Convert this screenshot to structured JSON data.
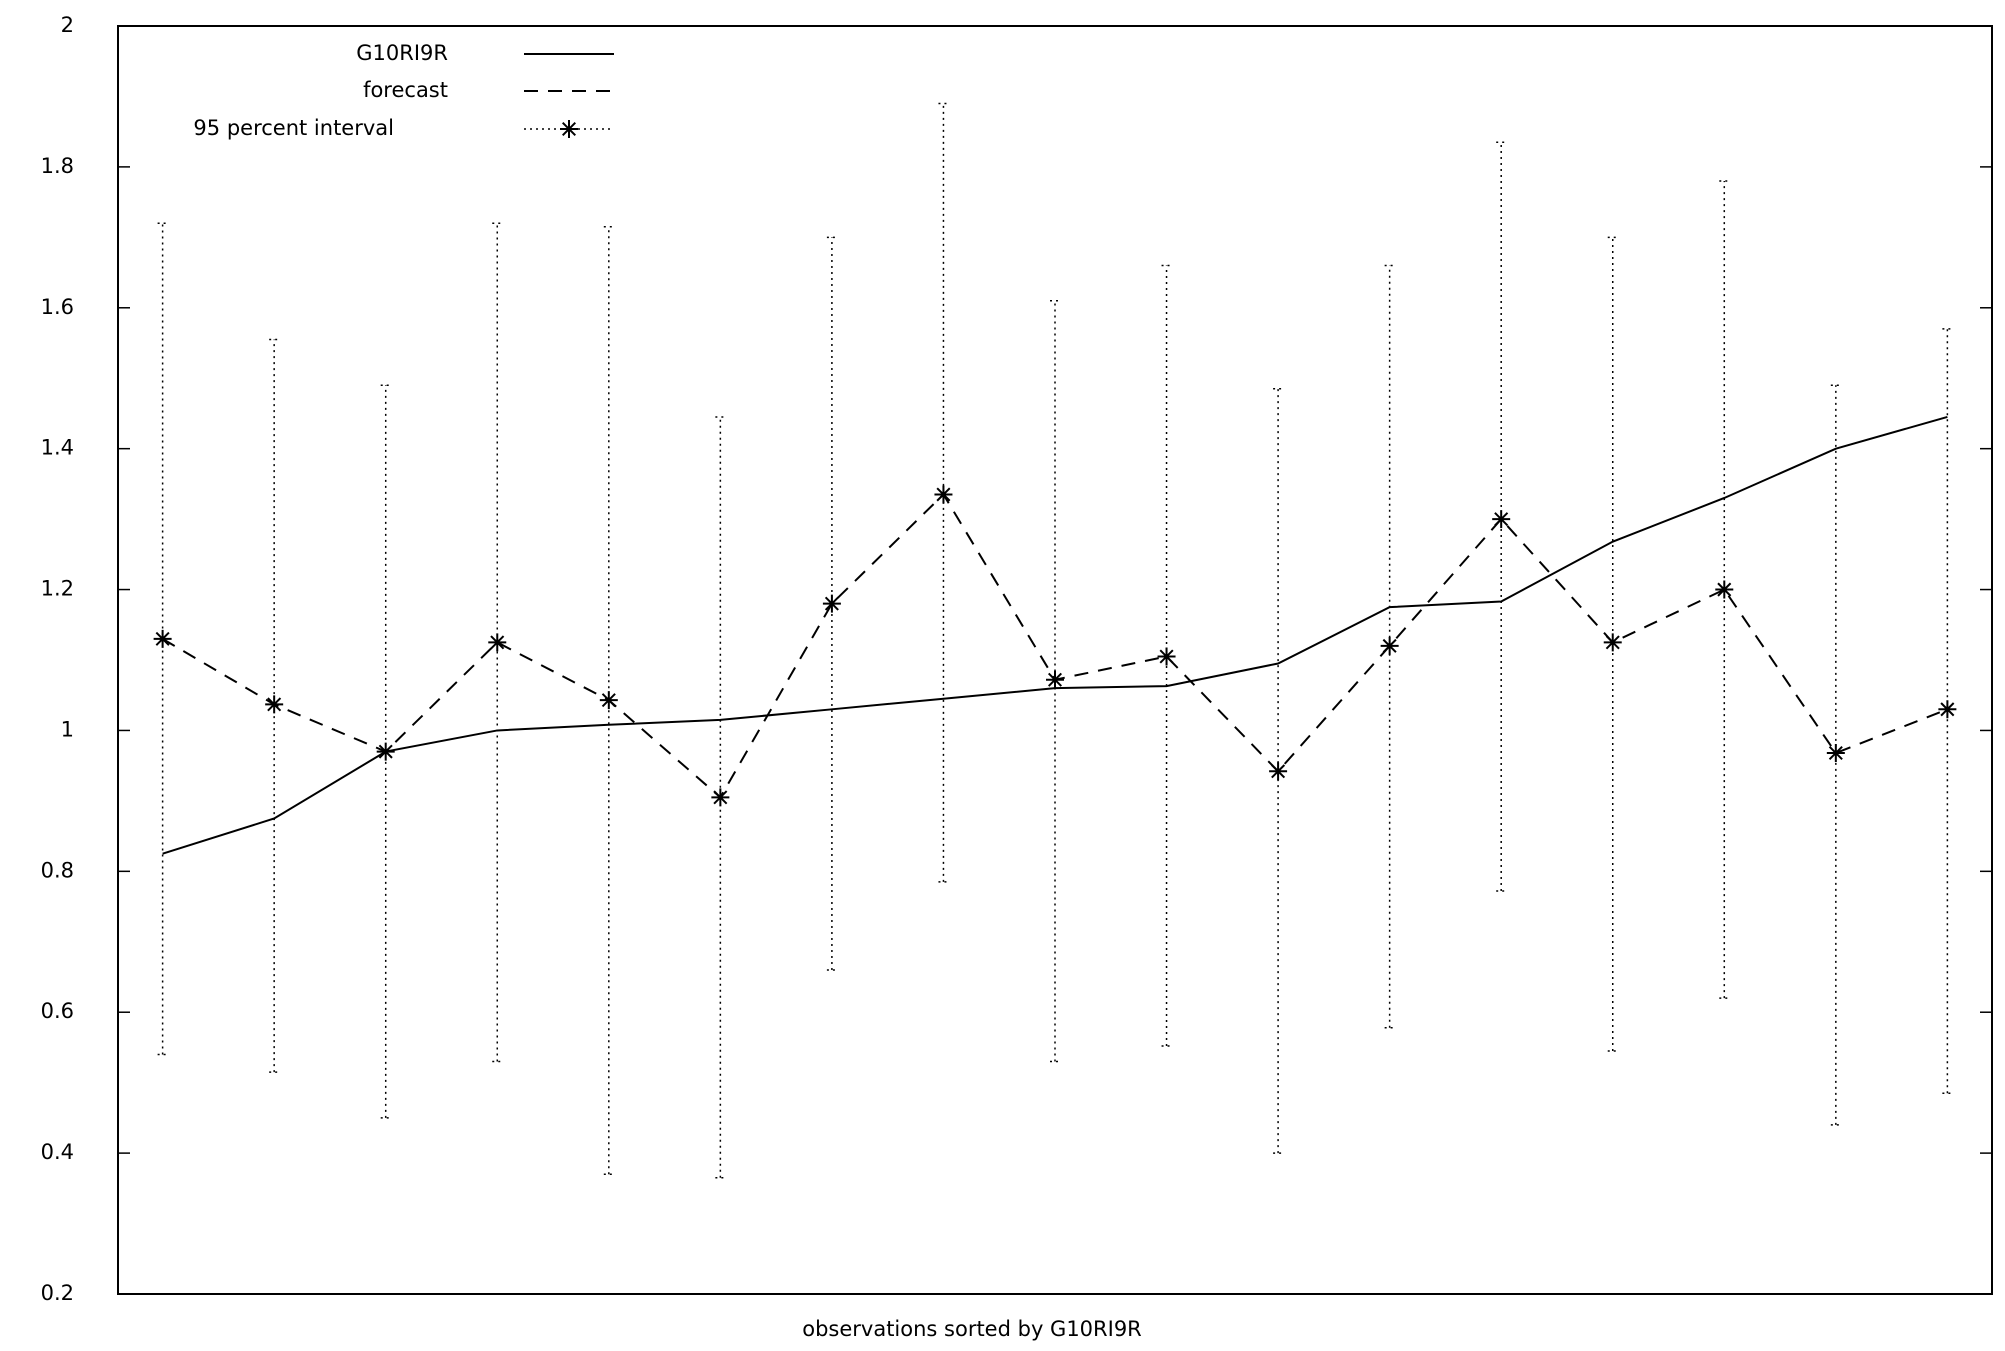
{
  "chart_data": {
    "type": "line",
    "x_label": "observations sorted by G10RI9R",
    "x": [
      1,
      2,
      3,
      4,
      5,
      6,
      7,
      8,
      9,
      10,
      11,
      12,
      13,
      14,
      15,
      16,
      17
    ],
    "xlim": [
      0.6,
      17.4
    ],
    "ylim": [
      0.2,
      2
    ],
    "yticks": [
      0.2,
      0.4,
      0.6,
      0.8,
      1,
      1.2,
      1.4,
      1.6,
      1.8,
      2
    ],
    "legend": "top-left",
    "series": [
      {
        "name": "G10RI9R",
        "color": "#000000",
        "dash": "solid",
        "values": [
          0.825,
          0.875,
          0.97,
          1.0,
          1.008,
          1.015,
          1.03,
          1.045,
          1.06,
          1.063,
          1.095,
          1.175,
          1.183,
          1.268,
          1.33,
          1.4,
          1.445
        ]
      },
      {
        "name": "forecast",
        "color": "#000000",
        "dash": "dashed",
        "values": [
          1.13,
          1.037,
          0.97,
          1.125,
          1.043,
          0.905,
          1.18,
          1.335,
          1.072,
          1.105,
          0.942,
          1.12,
          1.3,
          1.125,
          1.2,
          0.968,
          1.03
        ]
      }
    ],
    "interval": {
      "name": "95 percent interval",
      "color": "#000000",
      "low": [
        0.54,
        0.515,
        0.45,
        0.53,
        0.37,
        0.365,
        0.66,
        0.785,
        0.53,
        0.552,
        0.4,
        0.578,
        0.772,
        0.545,
        0.62,
        0.44,
        0.485
      ],
      "high": [
        1.72,
        1.555,
        1.49,
        1.72,
        1.715,
        1.445,
        1.7,
        1.89,
        1.61,
        1.66,
        1.485,
        1.66,
        1.835,
        1.7,
        1.78,
        1.49,
        1.57
      ]
    }
  }
}
